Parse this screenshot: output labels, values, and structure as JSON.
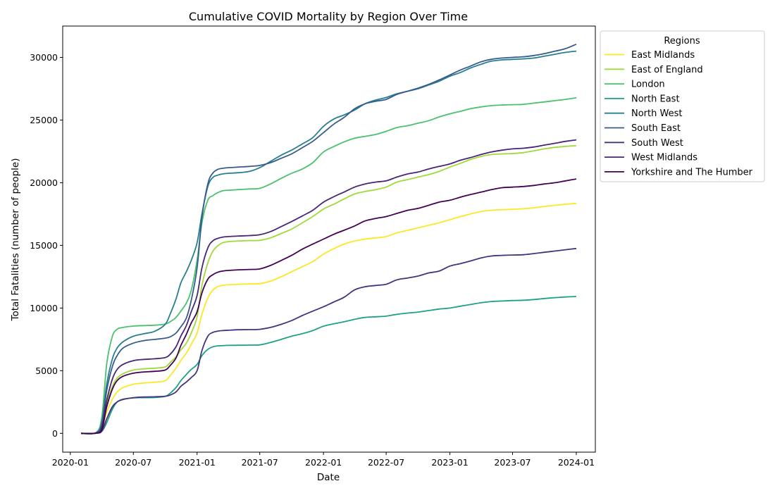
{
  "chart_data": {
    "type": "line",
    "title": "Cumulative COVID Mortality by Region Over Time",
    "xlabel": "Date",
    "ylabel": "Total Fatalities (number of people)",
    "x_range": [
      "2019-12-10",
      "2024-02-25"
    ],
    "ylim": [
      -1500,
      32500
    ],
    "x_ticks": [
      "2020-01",
      "2020-07",
      "2021-01",
      "2021-07",
      "2022-01",
      "2022-07",
      "2023-01",
      "2023-07",
      "2024-01"
    ],
    "y_ticks": [
      "0",
      "5000",
      "10000",
      "15000",
      "20000",
      "25000",
      "30000"
    ],
    "grid": false,
    "legend": {
      "title": "Regions",
      "placement": "outside right, top"
    },
    "x": [
      "2020-02-01",
      "2020-03-15",
      "2020-04-01",
      "2020-04-15",
      "2020-05-01",
      "2020-05-15",
      "2020-06-01",
      "2020-07-01",
      "2020-08-01",
      "2020-09-01",
      "2020-10-01",
      "2020-10-15",
      "2020-11-01",
      "2020-11-15",
      "2020-12-01",
      "2020-12-15",
      "2021-01-01",
      "2021-01-15",
      "2021-02-01",
      "2021-02-15",
      "2021-03-01",
      "2021-03-15",
      "2021-04-01",
      "2021-05-01",
      "2021-06-01",
      "2021-07-01",
      "2021-08-01",
      "2021-09-01",
      "2021-10-01",
      "2021-11-01",
      "2021-12-01",
      "2022-01-01",
      "2022-02-01",
      "2022-03-01",
      "2022-04-01",
      "2022-05-01",
      "2022-06-01",
      "2022-07-01",
      "2022-08-01",
      "2022-09-01",
      "2022-10-01",
      "2022-11-01",
      "2022-12-01",
      "2023-01-01",
      "2023-02-01",
      "2023-03-01",
      "2023-04-01",
      "2023-05-01",
      "2023-06-01",
      "2023-07-01",
      "2023-08-01",
      "2023-09-01",
      "2023-10-01",
      "2023-11-01",
      "2023-12-01",
      "2024-01-01"
    ],
    "series": [
      {
        "name": "East Midlands",
        "color": "#fde725",
        "values": [
          0,
          20,
          400,
          1700,
          2700,
          3300,
          3650,
          3920,
          4020,
          4080,
          4200,
          4600,
          5200,
          5800,
          6400,
          7100,
          8000,
          9500,
          10800,
          11400,
          11700,
          11800,
          11850,
          11900,
          11920,
          11950,
          12150,
          12500,
          12900,
          13300,
          13700,
          14300,
          14750,
          15100,
          15350,
          15500,
          15600,
          15700,
          16000,
          16200,
          16400,
          16600,
          16800,
          17050,
          17300,
          17500,
          17700,
          17800,
          17850,
          17880,
          17920,
          18000,
          18100,
          18200,
          18280,
          18350
        ]
      },
      {
        "name": "East of England",
        "color": "#a0da39",
        "values": [
          0,
          25,
          450,
          2300,
          3700,
          4400,
          4750,
          5050,
          5150,
          5200,
          5300,
          5650,
          6100,
          6650,
          7200,
          8000,
          9300,
          11800,
          13600,
          14500,
          14950,
          15200,
          15300,
          15350,
          15380,
          15400,
          15600,
          15950,
          16300,
          16800,
          17300,
          17900,
          18300,
          18700,
          19100,
          19300,
          19450,
          19650,
          20050,
          20250,
          20450,
          20650,
          20900,
          21250,
          21550,
          21850,
          22100,
          22250,
          22300,
          22330,
          22400,
          22550,
          22700,
          22820,
          22900,
          22950
        ]
      },
      {
        "name": "London",
        "color": "#4ac16d",
        "values": [
          0,
          70,
          1300,
          5500,
          7700,
          8300,
          8450,
          8560,
          8600,
          8630,
          8720,
          8900,
          9250,
          9750,
          10400,
          11400,
          13800,
          16800,
          18600,
          18950,
          19200,
          19350,
          19400,
          19450,
          19500,
          19550,
          19900,
          20350,
          20750,
          21100,
          21600,
          22450,
          22900,
          23250,
          23550,
          23700,
          23850,
          24100,
          24400,
          24550,
          24750,
          24950,
          25250,
          25500,
          25700,
          25900,
          26050,
          26150,
          26200,
          26230,
          26250,
          26350,
          26450,
          26550,
          26650,
          26780
        ]
      },
      {
        "name": "North East",
        "color": "#1fa187",
        "values": [
          0,
          10,
          150,
          850,
          1900,
          2500,
          2730,
          2830,
          2850,
          2860,
          2950,
          3200,
          3650,
          4200,
          4700,
          5100,
          5500,
          6200,
          6700,
          6900,
          6980,
          7000,
          7020,
          7030,
          7040,
          7060,
          7250,
          7500,
          7750,
          7950,
          8200,
          8550,
          8750,
          8900,
          9100,
          9250,
          9300,
          9350,
          9500,
          9600,
          9680,
          9800,
          9920,
          10000,
          10150,
          10280,
          10420,
          10520,
          10560,
          10600,
          10620,
          10680,
          10760,
          10830,
          10880,
          10920
        ]
      },
      {
        "name": "North West",
        "color": "#277f8e",
        "values": [
          0,
          40,
          900,
          3900,
          5900,
          6800,
          7300,
          7750,
          7950,
          8150,
          8700,
          9500,
          10700,
          12000,
          12900,
          13800,
          15200,
          17500,
          19700,
          20400,
          20600,
          20700,
          20750,
          20800,
          20900,
          21200,
          21700,
          22200,
          22600,
          23100,
          23600,
          24500,
          25100,
          25400,
          25800,
          26300,
          26600,
          26800,
          27100,
          27300,
          27500,
          27800,
          28100,
          28500,
          28800,
          29150,
          29450,
          29700,
          29800,
          29840,
          29880,
          29950,
          30100,
          30250,
          30400,
          30500
        ]
      },
      {
        "name": "South East",
        "color": "#365c8d",
        "values": [
          0,
          30,
          700,
          3400,
          5300,
          6200,
          6800,
          7200,
          7400,
          7500,
          7600,
          7700,
          8000,
          8500,
          9200,
          10600,
          13200,
          17200,
          19900,
          20750,
          21050,
          21150,
          21200,
          21250,
          21300,
          21380,
          21600,
          21950,
          22300,
          22800,
          23300,
          24000,
          24700,
          25200,
          25900,
          26300,
          26500,
          26650,
          27050,
          27300,
          27550,
          27850,
          28200,
          28600,
          29000,
          29300,
          29650,
          29850,
          29950,
          30000,
          30050,
          30150,
          30300,
          30500,
          30700,
          31050
        ]
      },
      {
        "name": "South West",
        "color": "#46327e",
        "values": [
          0,
          10,
          200,
          1150,
          2100,
          2500,
          2700,
          2850,
          2900,
          2920,
          2960,
          3050,
          3300,
          3750,
          4100,
          4450,
          5000,
          6600,
          7750,
          8050,
          8150,
          8200,
          8230,
          8270,
          8280,
          8300,
          8450,
          8700,
          9000,
          9400,
          9750,
          10100,
          10500,
          10850,
          11450,
          11700,
          11800,
          11900,
          12250,
          12400,
          12550,
          12800,
          12950,
          13350,
          13550,
          13750,
          14000,
          14150,
          14200,
          14230,
          14250,
          14350,
          14450,
          14550,
          14650,
          14750
        ]
      },
      {
        "name": "West Midlands",
        "color": "#482576",
        "values": [
          0,
          20,
          500,
          2600,
          4300,
          5100,
          5500,
          5800,
          5900,
          5950,
          6050,
          6300,
          6900,
          7750,
          8600,
          9700,
          11000,
          13200,
          14800,
          15350,
          15550,
          15650,
          15700,
          15750,
          15780,
          15850,
          16100,
          16500,
          16900,
          17350,
          17800,
          18450,
          18900,
          19250,
          19650,
          19900,
          20050,
          20150,
          20450,
          20700,
          20850,
          21100,
          21300,
          21500,
          21800,
          22000,
          22250,
          22450,
          22600,
          22700,
          22750,
          22850,
          23000,
          23150,
          23300,
          23420
        ]
      },
      {
        "name": "Yorkshire and The Humber",
        "color": "#440154",
        "values": [
          0,
          15,
          300,
          2100,
          3500,
          4200,
          4550,
          4800,
          4900,
          4950,
          5050,
          5400,
          6000,
          7000,
          7900,
          8800,
          9700,
          11200,
          12300,
          12650,
          12850,
          12950,
          13000,
          13050,
          13080,
          13120,
          13400,
          13800,
          14200,
          14700,
          15100,
          15500,
          15900,
          16200,
          16550,
          16950,
          17150,
          17300,
          17550,
          17800,
          17950,
          18200,
          18450,
          18600,
          18850,
          19050,
          19250,
          19450,
          19600,
          19650,
          19700,
          19780,
          19900,
          20000,
          20150,
          20300
        ]
      }
    ]
  }
}
